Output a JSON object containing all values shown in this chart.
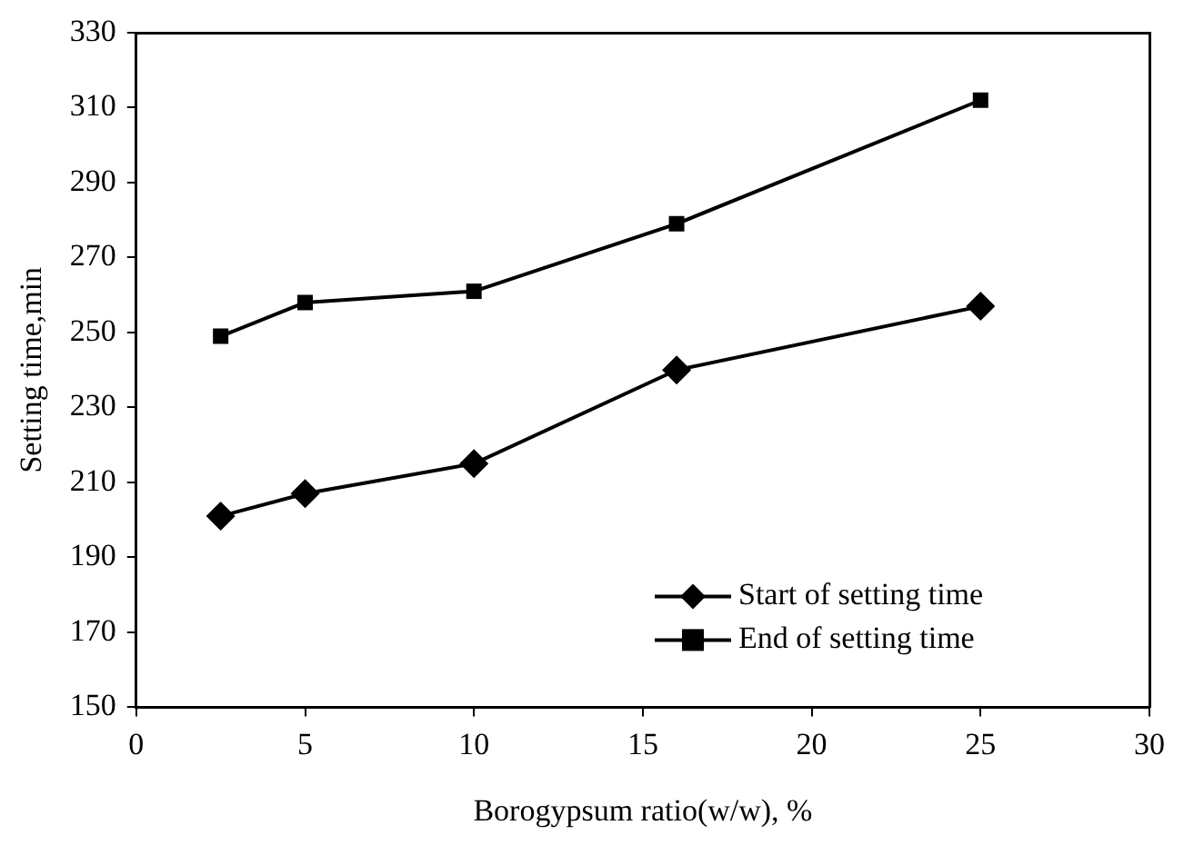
{
  "chart_data": {
    "type": "line",
    "xlabel": "Borogypsum ratio(w/w), %",
    "ylabel": "Setting time,min",
    "x": [
      2.5,
      5,
      10,
      16,
      25
    ],
    "series": [
      {
        "name": "Start of setting time",
        "color": "#000000",
        "marker": "diamond",
        "values": [
          201,
          207,
          215,
          240,
          257
        ]
      },
      {
        "name": "End of setting time",
        "color": "#000000",
        "marker": "square",
        "values": [
          249,
          258,
          261,
          279,
          312
        ]
      }
    ],
    "xlim": [
      0,
      30
    ],
    "xticks": [
      0,
      5,
      10,
      15,
      20,
      25,
      30
    ],
    "ylim": [
      150,
      330
    ],
    "yticks": [
      150,
      170,
      190,
      210,
      230,
      250,
      270,
      290,
      310,
      330
    ],
    "grid": false,
    "legend": "bottom right",
    "line_style": "solid"
  }
}
